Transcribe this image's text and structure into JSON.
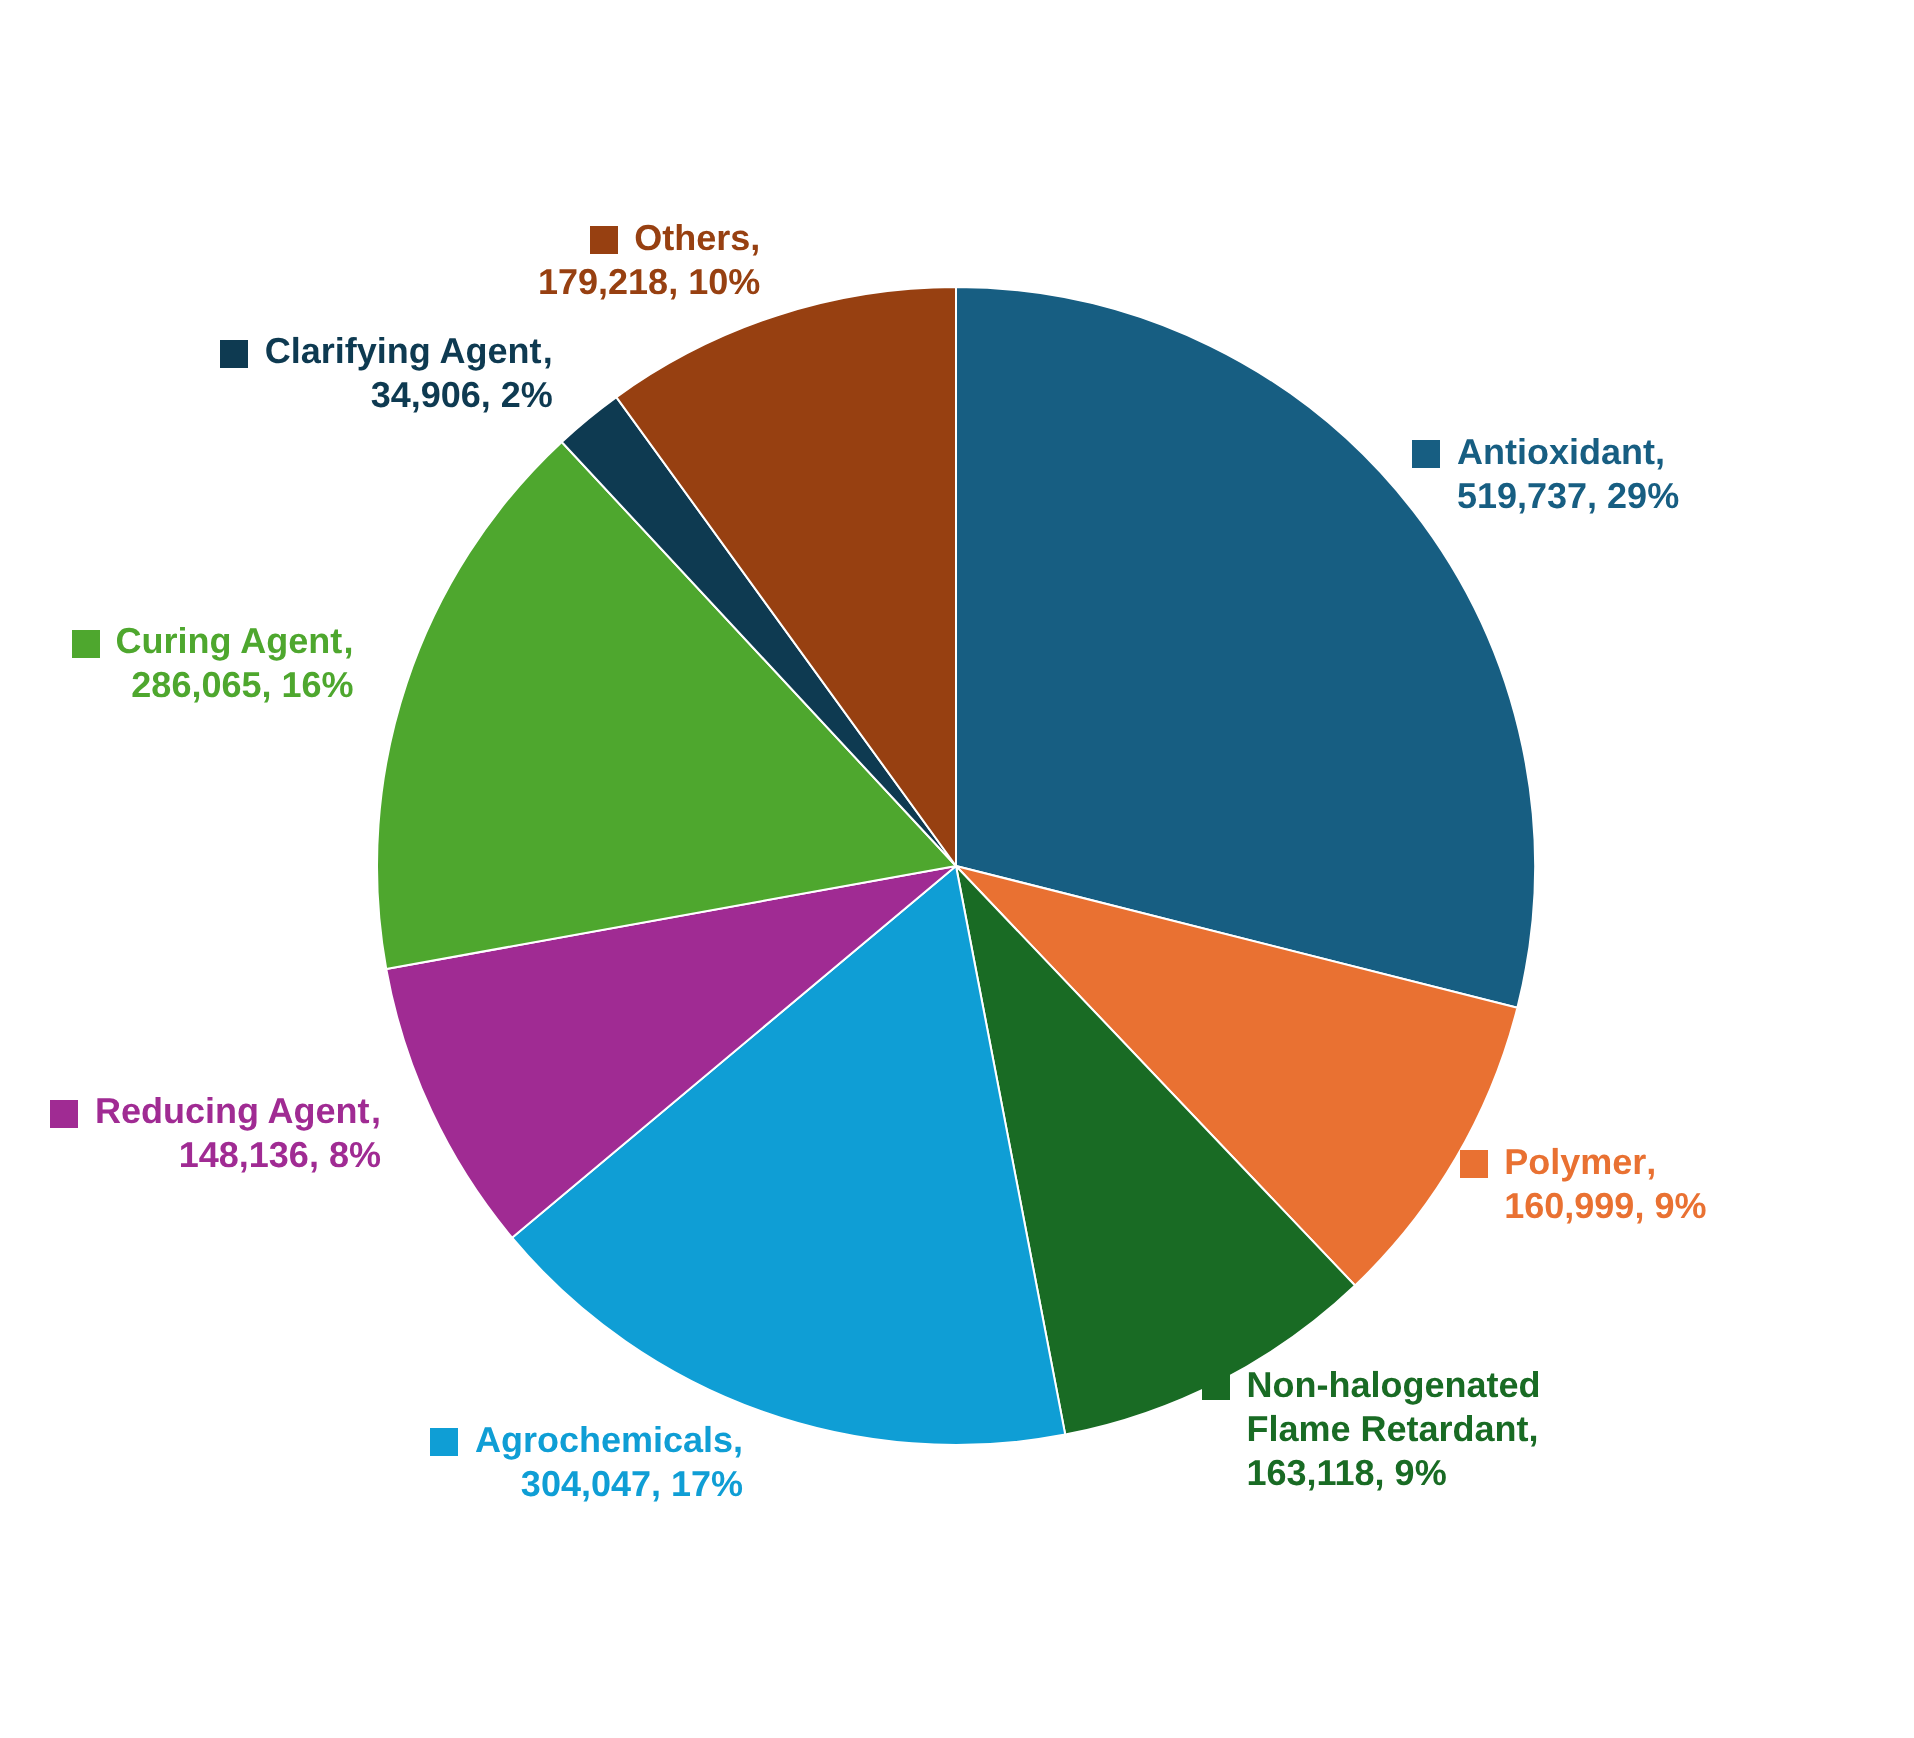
{
  "chart_data": {
    "type": "pie",
    "categories": [
      "Antioxidant",
      "Polymer",
      "Non-halogenated Flame Retardant",
      "Agrochemicals",
      "Reducing Agent",
      "Curing Agent",
      "Clarifying Agent",
      "Others"
    ],
    "values": [
      519737,
      160999,
      163118,
      304047,
      148136,
      286065,
      34906,
      179218
    ],
    "value_labels": [
      ", 519,737, 29%",
      ", 160,999, 9%",
      ", 163,118, 9%",
      ", 304,047, 17%",
      ", 148,136, 8%",
      ", 286,065, 16%",
      ", 34,906, 2%",
      ", 179,218, 10%"
    ],
    "colors": [
      "#175e82",
      "#e97132",
      "#196b24",
      "#0f9ed5",
      "#a02b93",
      "#4ea72e",
      "#0e3a51",
      "#974011"
    ],
    "legend": "top left"
  }
}
